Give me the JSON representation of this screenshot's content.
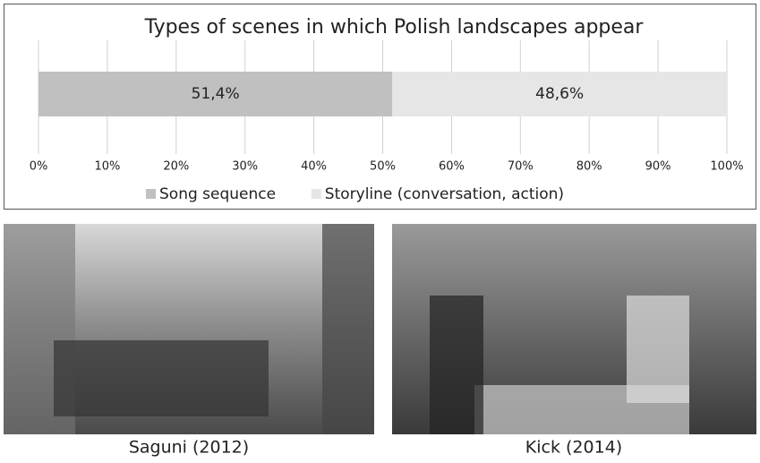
{
  "chart_data": {
    "type": "stacked-bar",
    "orientation": "horizontal",
    "title": "Types of scenes in which Polish landscapes appear",
    "categories": [
      null
    ],
    "series": [
      {
        "name": "Song sequence",
        "color": "#c0c0c0",
        "values": [
          51.4
        ],
        "value_labels": [
          "51,4%"
        ]
      },
      {
        "name": "Storyline (conversation, action)",
        "color": "#e6e6e6",
        "values": [
          48.6
        ],
        "value_labels": [
          "48,6%"
        ]
      }
    ],
    "xlim": [
      0,
      100
    ],
    "xticks": [
      {
        "value": 0,
        "label": "0%"
      },
      {
        "value": 10,
        "label": "10%"
      },
      {
        "value": 20,
        "label": "20%"
      },
      {
        "value": 30,
        "label": "30%"
      },
      {
        "value": 40,
        "label": "40%"
      },
      {
        "value": 50,
        "label": "50%"
      },
      {
        "value": 60,
        "label": "60%"
      },
      {
        "value": 70,
        "label": "70%"
      },
      {
        "value": 80,
        "label": "80%"
      },
      {
        "value": 90,
        "label": "90%"
      },
      {
        "value": 100,
        "label": "100%"
      }
    ],
    "grid": true,
    "legend": "bottom"
  },
  "images": [
    {
      "caption": "Saguni (2012)"
    },
    {
      "caption": "Kick (2014)"
    }
  ]
}
